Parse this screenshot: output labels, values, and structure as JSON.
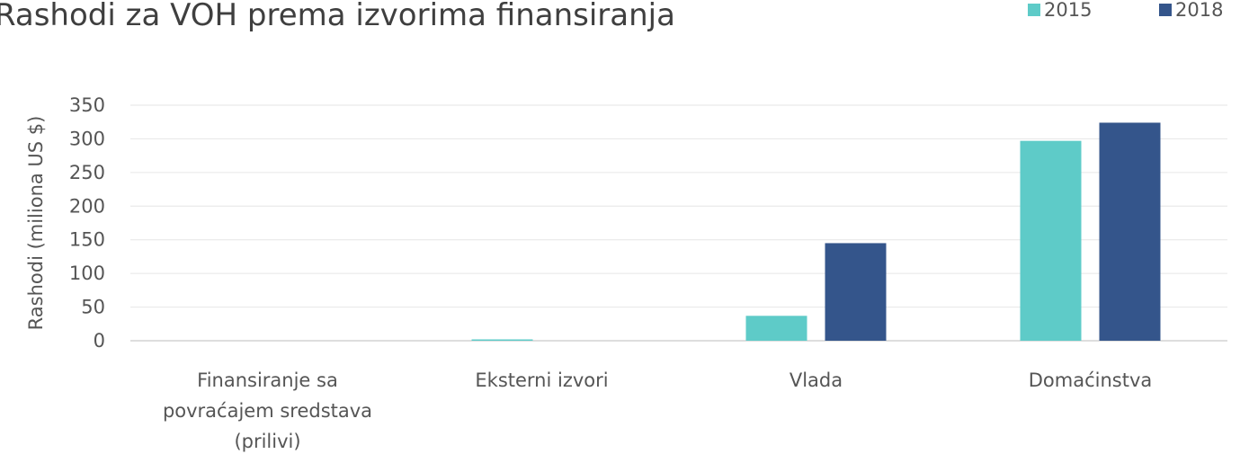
{
  "chart_data": {
    "type": "bar",
    "title": "Rashodi za VOH prema izvorima finansiranja",
    "ylabel": "Rashodi (miliona US $)",
    "xlabel": "",
    "ylim": [
      0,
      350
    ],
    "yticks": [
      0,
      50,
      100,
      150,
      200,
      250,
      300,
      350
    ],
    "grid": true,
    "legend_position": "top-right",
    "categories": [
      [
        "Finansiranje sa",
        "povraćajem sredstava",
        "(prilivi)"
      ],
      [
        "Eksterni izvori"
      ],
      [
        "Vlada"
      ],
      [
        "Domaćinstva"
      ]
    ],
    "series": [
      {
        "name": "2015",
        "color": "#5ecbc8",
        "values": [
          0,
          2,
          37,
          297
        ]
      },
      {
        "name": "2018",
        "color": "#34558b",
        "values": [
          0,
          0,
          145,
          324
        ]
      }
    ]
  }
}
